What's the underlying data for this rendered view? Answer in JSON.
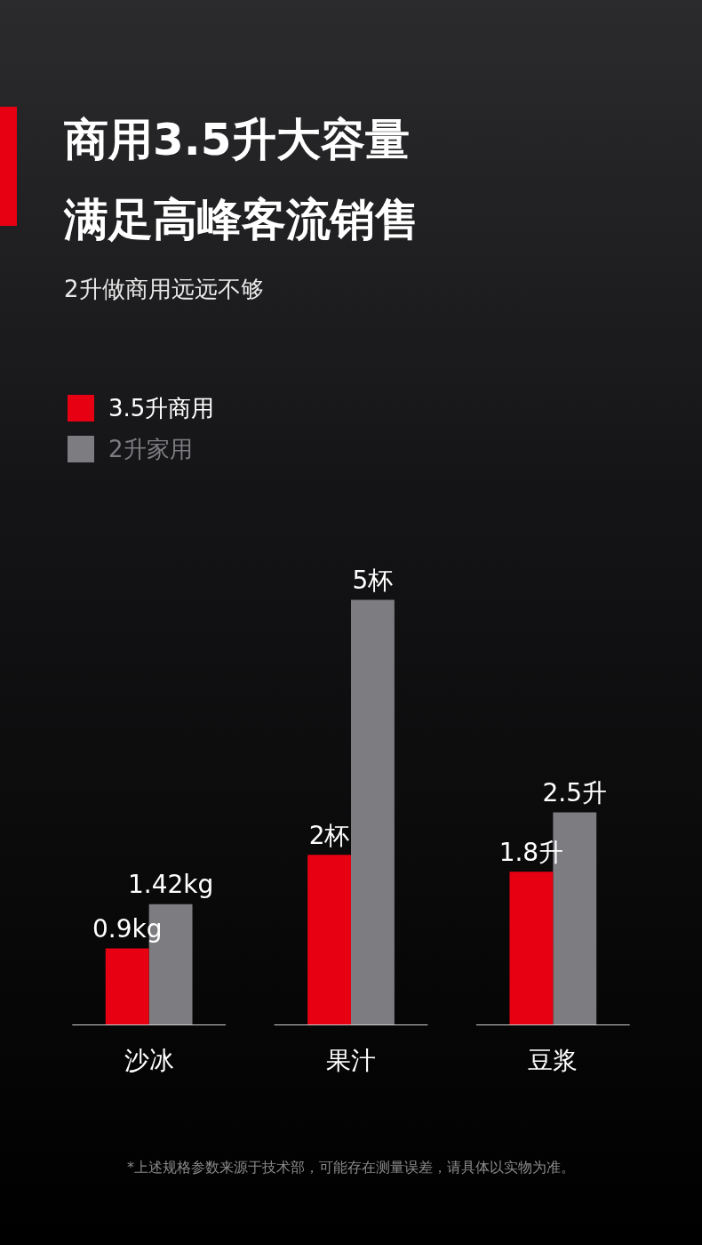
{
  "chart_data": {
    "type": "bar",
    "title": "商用3.5升大容量满足高峰客流销售",
    "subtitle": "2升做商用远远不够",
    "categories": [
      "沙冰",
      "果汁",
      "豆浆"
    ],
    "legend": "top left",
    "series": [
      {
        "name": "3.5升商用",
        "color": "#e60012",
        "values": [
          0.9,
          2,
          1.8
        ],
        "value_labels": [
          "0.9kg",
          "2杯",
          "1.8升"
        ]
      },
      {
        "name": "2升家用",
        "color": "#7d7c81",
        "values": [
          1.42,
          5,
          2.5
        ],
        "value_labels": [
          "1.42kg",
          "5杯",
          "2.5升"
        ]
      }
    ],
    "annotations": [
      "*上述规格参数来源于技术部，可能存在测量误差，请具体以实物为准。"
    ]
  }
}
